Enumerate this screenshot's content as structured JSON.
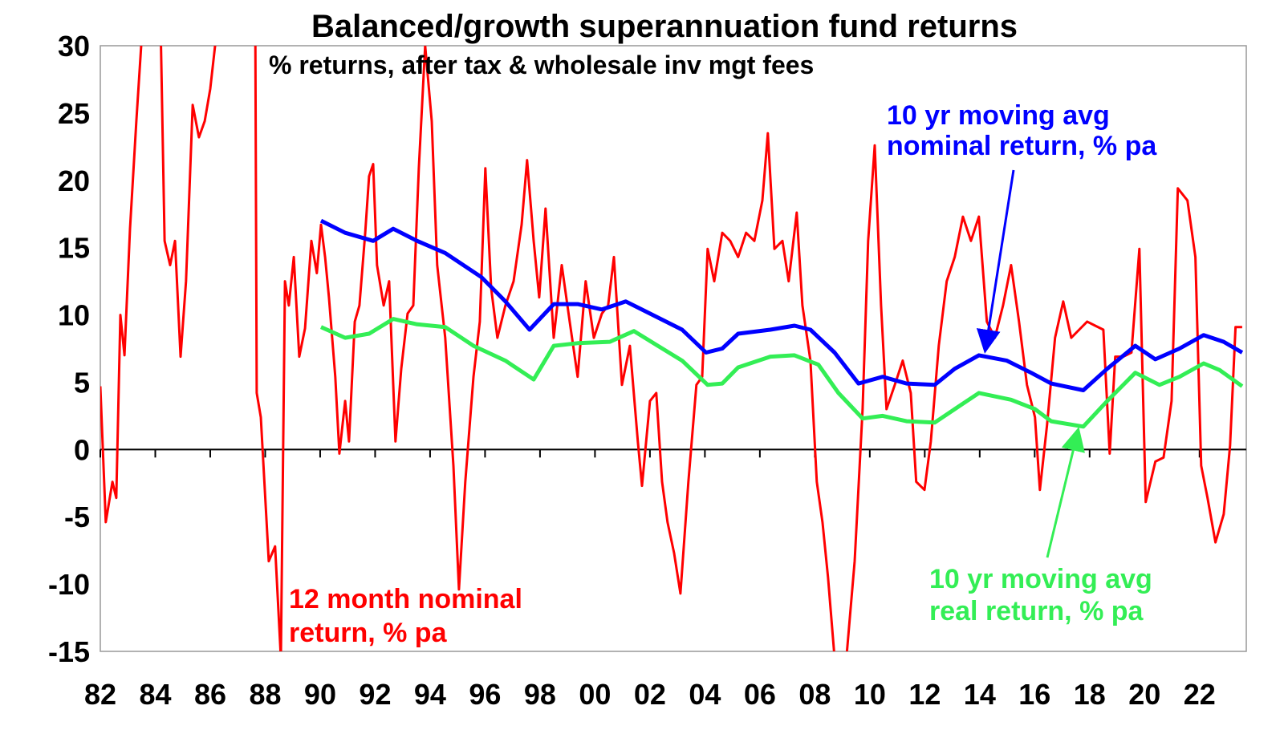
{
  "chart_data": {
    "type": "line",
    "title": "Balanced/growth superannuation fund returns",
    "subtitle": "% returns, after tax & wholesale inv mgt fees",
    "xlabel": "",
    "ylabel": "",
    "ylim": [
      -15,
      30
    ],
    "xlim": [
      1982,
      2023.7
    ],
    "grid": false,
    "y_ticks": [
      "30",
      "25",
      "20",
      "15",
      "10",
      "5",
      "0",
      "-5",
      "-10",
      "-15"
    ],
    "y_tick_values": [
      30,
      25,
      20,
      15,
      10,
      5,
      0,
      -5,
      -10,
      -15
    ],
    "x_ticks": [
      "82",
      "84",
      "86",
      "88",
      "90",
      "92",
      "94",
      "96",
      "98",
      "00",
      "02",
      "04",
      "06",
      "08",
      "10",
      "12",
      "14",
      "16",
      "18",
      "20",
      "22"
    ],
    "x_tick_values": [
      1982,
      1984,
      1986,
      1988,
      1990,
      1992,
      1994,
      1996,
      1998,
      2000,
      2002,
      2004,
      2006,
      2008,
      2010,
      2012,
      2014,
      2016,
      2018,
      2020,
      2022
    ],
    "colors": {
      "nominal12m": "#ff0000",
      "nominal10y": "#0000ff",
      "real10y": "#33ee55"
    },
    "annotations": {
      "red": [
        "12 month nominal",
        "return, % pa"
      ],
      "blue": [
        "10 yr moving avg",
        "nominal return, % pa"
      ],
      "green": [
        "10 yr moving avg",
        "real return, % pa"
      ]
    },
    "series": [
      {
        "name": "12 month nominal return, % pa",
        "points": [
          [
            1982.0,
            4.7
          ],
          [
            1982.2,
            -5.4
          ],
          [
            1982.44,
            -2.4
          ],
          [
            1982.58,
            -3.6
          ],
          [
            1982.73,
            10.0
          ],
          [
            1982.88,
            7.0
          ],
          [
            1983.08,
            16.4
          ],
          [
            1983.31,
            24.4
          ],
          [
            1983.55,
            32
          ],
          [
            1983.9,
            35
          ],
          [
            1984.19,
            32
          ],
          [
            1984.34,
            15.5
          ],
          [
            1984.54,
            13.7
          ],
          [
            1984.72,
            15.5
          ],
          [
            1984.92,
            6.9
          ],
          [
            1985.12,
            12.5
          ],
          [
            1985.36,
            25.6
          ],
          [
            1985.59,
            23.2
          ],
          [
            1985.8,
            24.4
          ],
          [
            1986.0,
            26.8
          ],
          [
            1986.23,
            31
          ],
          [
            1986.82,
            35
          ],
          [
            1987.4,
            35
          ],
          [
            1987.64,
            32
          ],
          [
            1987.69,
            4.2
          ],
          [
            1987.84,
            2.4
          ],
          [
            1988.13,
            -8.3
          ],
          [
            1988.36,
            -7.2
          ],
          [
            1988.57,
            -15.5
          ],
          [
            1988.72,
            12.5
          ],
          [
            1988.86,
            10.7
          ],
          [
            1989.04,
            14.3
          ],
          [
            1989.24,
            6.9
          ],
          [
            1989.45,
            9.0
          ],
          [
            1989.68,
            15.5
          ],
          [
            1989.88,
            13.1
          ],
          [
            1990.03,
            16.7
          ],
          [
            1990.18,
            14.3
          ],
          [
            1990.32,
            11.3
          ],
          [
            1990.55,
            5.4
          ],
          [
            1990.7,
            -0.3
          ],
          [
            1990.91,
            3.6
          ],
          [
            1991.05,
            0.6
          ],
          [
            1991.26,
            9.5
          ],
          [
            1991.43,
            10.7
          ],
          [
            1991.64,
            16.1
          ],
          [
            1991.78,
            20.3
          ],
          [
            1991.93,
            21.2
          ],
          [
            1992.07,
            13.7
          ],
          [
            1992.31,
            10.7
          ],
          [
            1992.51,
            12.5
          ],
          [
            1992.74,
            0.6
          ],
          [
            1992.95,
            6.0
          ],
          [
            1993.18,
            10.1
          ],
          [
            1993.39,
            10.7
          ],
          [
            1993.59,
            20.9
          ],
          [
            1993.82,
            30
          ],
          [
            1994.06,
            24.4
          ],
          [
            1994.26,
            13.7
          ],
          [
            1994.55,
            8.3
          ],
          [
            1994.85,
            -1.2
          ],
          [
            1995.05,
            -10.4
          ],
          [
            1995.28,
            -2.4
          ],
          [
            1995.58,
            5.4
          ],
          [
            1995.81,
            9.5
          ],
          [
            1996.01,
            20.9
          ],
          [
            1996.22,
            12.0
          ],
          [
            1996.45,
            8.3
          ],
          [
            1996.74,
            10.7
          ],
          [
            1997.04,
            12.5
          ],
          [
            1997.33,
            16.7
          ],
          [
            1997.53,
            21.5
          ],
          [
            1997.77,
            15.5
          ],
          [
            1997.97,
            11.3
          ],
          [
            1998.2,
            17.9
          ],
          [
            1998.5,
            8.3
          ],
          [
            1998.79,
            13.7
          ],
          [
            1999.08,
            9.5
          ],
          [
            1999.37,
            5.4
          ],
          [
            1999.66,
            12.5
          ],
          [
            1999.96,
            8.3
          ],
          [
            2000.25,
            10.1
          ],
          [
            2000.48,
            10.7
          ],
          [
            2000.69,
            14.3
          ],
          [
            2000.98,
            4.8
          ],
          [
            2001.27,
            7.7
          ],
          [
            2001.56,
            0.6
          ],
          [
            2001.71,
            -2.7
          ],
          [
            2002.0,
            3.6
          ],
          [
            2002.23,
            4.2
          ],
          [
            2002.44,
            -2.4
          ],
          [
            2002.64,
            -5.4
          ],
          [
            2002.88,
            -7.7
          ],
          [
            2003.11,
            -10.7
          ],
          [
            2003.4,
            -2.4
          ],
          [
            2003.69,
            4.8
          ],
          [
            2003.9,
            5.4
          ],
          [
            2004.1,
            14.9
          ],
          [
            2004.34,
            12.5
          ],
          [
            2004.63,
            16.1
          ],
          [
            2004.92,
            15.5
          ],
          [
            2005.21,
            14.3
          ],
          [
            2005.5,
            16.1
          ],
          [
            2005.8,
            15.5
          ],
          [
            2006.09,
            18.5
          ],
          [
            2006.29,
            23.5
          ],
          [
            2006.53,
            14.9
          ],
          [
            2006.82,
            15.5
          ],
          [
            2007.05,
            12.5
          ],
          [
            2007.34,
            17.6
          ],
          [
            2007.55,
            10.7
          ],
          [
            2007.84,
            6.6
          ],
          [
            2008.07,
            -2.4
          ],
          [
            2008.28,
            -5.4
          ],
          [
            2008.48,
            -9.5
          ],
          [
            2008.72,
            -15.5
          ],
          [
            2009.15,
            -15.5
          ],
          [
            2009.45,
            -8.3
          ],
          [
            2009.74,
            3.0
          ],
          [
            2009.94,
            15.5
          ],
          [
            2010.18,
            22.6
          ],
          [
            2010.41,
            10.7
          ],
          [
            2010.61,
            3.0
          ],
          [
            2010.91,
            4.8
          ],
          [
            2011.2,
            6.6
          ],
          [
            2011.49,
            4.2
          ],
          [
            2011.69,
            -2.4
          ],
          [
            2011.99,
            -3.0
          ],
          [
            2012.22,
            0.6
          ],
          [
            2012.51,
            7.7
          ],
          [
            2012.8,
            12.5
          ],
          [
            2013.09,
            14.3
          ],
          [
            2013.39,
            17.3
          ],
          [
            2013.68,
            15.5
          ],
          [
            2013.97,
            17.3
          ],
          [
            2014.26,
            9.5
          ],
          [
            2014.55,
            8.3
          ],
          [
            2014.85,
            10.7
          ],
          [
            2015.14,
            13.7
          ],
          [
            2015.43,
            9.5
          ],
          [
            2015.72,
            4.8
          ],
          [
            2016.01,
            2.4
          ],
          [
            2016.19,
            -3.0
          ],
          [
            2016.45,
            1.8
          ],
          [
            2016.74,
            8.3
          ],
          [
            2017.04,
            11.0
          ],
          [
            2017.33,
            8.3
          ],
          [
            2017.62,
            8.9
          ],
          [
            2017.91,
            9.5
          ],
          [
            2018.2,
            9.2
          ],
          [
            2018.5,
            8.9
          ],
          [
            2018.73,
            -0.3
          ],
          [
            2018.93,
            6.9
          ],
          [
            2019.23,
            6.9
          ],
          [
            2019.52,
            7.2
          ],
          [
            2019.81,
            14.9
          ],
          [
            2020.04,
            -3.9
          ],
          [
            2020.39,
            -0.9
          ],
          [
            2020.69,
            -0.6
          ],
          [
            2020.98,
            3.6
          ],
          [
            2021.21,
            19.4
          ],
          [
            2021.56,
            18.5
          ],
          [
            2021.85,
            14.3
          ],
          [
            2022.06,
            -1.2
          ],
          [
            2022.29,
            -3.6
          ],
          [
            2022.58,
            -6.9
          ],
          [
            2022.88,
            -4.8
          ],
          [
            2023.11,
            0.3
          ],
          [
            2023.31,
            9.1
          ],
          [
            2023.55,
            9.1
          ]
        ]
      },
      {
        "name": "10 yr moving avg nominal return, % pa",
        "points": [
          [
            1990.03,
            17.0
          ],
          [
            1990.91,
            16.1
          ],
          [
            1991.93,
            15.5
          ],
          [
            1992.66,
            16.4
          ],
          [
            1993.53,
            15.5
          ],
          [
            1994.55,
            14.6
          ],
          [
            1995.87,
            12.8
          ],
          [
            1996.74,
            11.0
          ],
          [
            1997.62,
            8.9
          ],
          [
            1998.5,
            10.8
          ],
          [
            1999.37,
            10.8
          ],
          [
            2000.25,
            10.4
          ],
          [
            2001.12,
            11.0
          ],
          [
            2002.0,
            10.1
          ],
          [
            2003.17,
            8.9
          ],
          [
            2004.04,
            7.2
          ],
          [
            2004.63,
            7.5
          ],
          [
            2005.21,
            8.6
          ],
          [
            2006.38,
            8.9
          ],
          [
            2007.26,
            9.2
          ],
          [
            2007.84,
            8.9
          ],
          [
            2008.72,
            7.2
          ],
          [
            2009.59,
            4.9
          ],
          [
            2010.47,
            5.4
          ],
          [
            2011.34,
            4.9
          ],
          [
            2012.36,
            4.8
          ],
          [
            2013.09,
            6.0
          ],
          [
            2013.97,
            7.0
          ],
          [
            2014.99,
            6.6
          ],
          [
            2015.87,
            5.7
          ],
          [
            2016.6,
            4.9
          ],
          [
            2017.77,
            4.4
          ],
          [
            2018.64,
            6.0
          ],
          [
            2019.66,
            7.7
          ],
          [
            2020.39,
            6.7
          ],
          [
            2021.27,
            7.5
          ],
          [
            2022.15,
            8.5
          ],
          [
            2022.88,
            8.0
          ],
          [
            2023.55,
            7.2
          ]
        ]
      },
      {
        "name": "10 yr moving avg real return, % pa",
        "points": [
          [
            1990.03,
            9.1
          ],
          [
            1990.91,
            8.3
          ],
          [
            1991.78,
            8.6
          ],
          [
            1992.66,
            9.7
          ],
          [
            1993.53,
            9.3
          ],
          [
            1994.55,
            9.1
          ],
          [
            1995.58,
            7.7
          ],
          [
            1996.74,
            6.6
          ],
          [
            1997.77,
            5.2
          ],
          [
            1998.5,
            7.7
          ],
          [
            1999.37,
            7.9
          ],
          [
            2000.54,
            8.0
          ],
          [
            2001.42,
            8.8
          ],
          [
            2002.29,
            7.7
          ],
          [
            2003.17,
            6.6
          ],
          [
            2004.1,
            4.8
          ],
          [
            2004.63,
            4.9
          ],
          [
            2005.21,
            6.1
          ],
          [
            2006.38,
            6.9
          ],
          [
            2007.26,
            7.0
          ],
          [
            2008.13,
            6.3
          ],
          [
            2008.86,
            4.2
          ],
          [
            2009.74,
            2.3
          ],
          [
            2010.47,
            2.5
          ],
          [
            2011.34,
            2.1
          ],
          [
            2012.36,
            2.0
          ],
          [
            2013.09,
            3.0
          ],
          [
            2013.97,
            4.2
          ],
          [
            2015.14,
            3.7
          ],
          [
            2016.01,
            3.0
          ],
          [
            2016.6,
            2.1
          ],
          [
            2017.77,
            1.7
          ],
          [
            2018.64,
            3.6
          ],
          [
            2019.66,
            5.7
          ],
          [
            2020.54,
            4.8
          ],
          [
            2021.27,
            5.4
          ],
          [
            2022.15,
            6.4
          ],
          [
            2022.73,
            5.9
          ],
          [
            2023.55,
            4.7
          ]
        ]
      }
    ]
  }
}
